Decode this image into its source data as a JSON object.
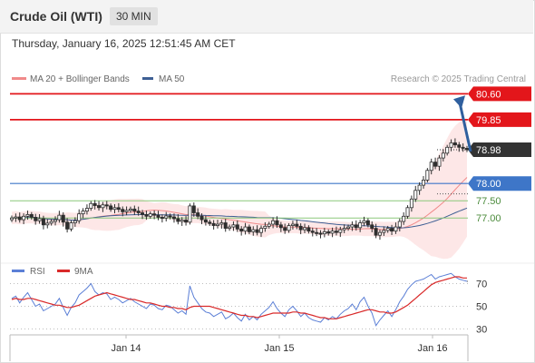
{
  "header": {
    "title": "Crude Oil (WTI)",
    "timeframe": "30 MIN",
    "datetime": "Thursday, January 16, 2025 12:51:45 AM CET"
  },
  "legend": {
    "ma20": "MA 20 + Bollinger Bands",
    "ma50": "MA 50",
    "rsi": "RSI",
    "ma9": "9MA",
    "credit": "Research © 2025 Trading Central"
  },
  "colors": {
    "resistance": "#e3161b",
    "support_main": "#3e76c8",
    "support_secondary": "#8cc87a",
    "current_price": "#333333",
    "candle_up": "#2e2e2e",
    "candle_down": "#2e2e2e",
    "bollinger_fill": "#fde3e3",
    "ma20": "#f08a8a",
    "ma50": "#3e5f94",
    "rsi": "#5b7fd6",
    "rsi_ma": "#d92a2a",
    "arrow": "#2f5f9e"
  },
  "chart_data": [
    {
      "type": "candlestick",
      "x_ticks": [
        "Jan 14",
        "Jan 15",
        "Jan 16"
      ],
      "ylim": [
        75.9,
        80.9
      ],
      "levels": [
        {
          "label": "80.60",
          "value": 80.6,
          "kind": "resistance"
        },
        {
          "label": "79.85",
          "value": 79.85,
          "kind": "resistance"
        },
        {
          "label": "78.98",
          "value": 78.98,
          "kind": "current"
        },
        {
          "label": "78.00",
          "value": 78.0,
          "kind": "support-main"
        },
        {
          "label": "77.50",
          "value": 77.5,
          "kind": "support"
        },
        {
          "label": "77.00",
          "value": 77.0,
          "kind": "support"
        }
      ],
      "close": [
        77.0,
        77.03,
        76.95,
        77.05,
        77.1,
        77.02,
        76.92,
        76.98,
        76.8,
        76.85,
        76.9,
        76.95,
        77.08,
        76.88,
        76.68,
        76.86,
        76.92,
        77.12,
        77.2,
        77.28,
        77.42,
        77.36,
        77.3,
        77.38,
        77.35,
        77.25,
        77.3,
        77.25,
        77.18,
        77.22,
        77.26,
        77.2,
        77.15,
        77.1,
        77.05,
        77.12,
        77.08,
        77.02,
        77.0,
        77.06,
        77.03,
        76.98,
        76.9,
        76.94,
        76.88,
        77.35,
        77.15,
        77.05,
        76.95,
        76.88,
        76.84,
        76.78,
        76.82,
        76.86,
        76.7,
        76.74,
        76.8,
        76.68,
        76.62,
        76.74,
        76.6,
        76.66,
        76.58,
        76.7,
        76.76,
        76.82,
        76.92,
        76.8,
        76.72,
        76.64,
        76.78,
        76.82,
        76.76,
        76.66,
        76.72,
        76.62,
        76.58,
        76.56,
        76.54,
        76.6,
        76.56,
        76.62,
        76.58,
        76.66,
        76.7,
        76.74,
        76.8,
        76.72,
        76.86,
        76.92,
        76.8,
        76.7,
        76.5,
        76.58,
        76.64,
        76.7,
        76.62,
        76.74,
        76.9,
        77.05,
        77.3,
        77.55,
        77.8,
        77.95,
        78.1,
        78.38,
        78.62,
        78.5,
        78.74,
        78.88,
        79.05,
        79.18,
        79.12,
        79.05,
        79.02,
        78.98
      ]
    },
    {
      "type": "line",
      "title": "RSI",
      "y_ticks": [
        70,
        50,
        30
      ],
      "ylim": [
        20,
        80
      ],
      "x_ticks": [
        "Jan 14",
        "Jan 15",
        "Jan 16"
      ],
      "series": [
        {
          "name": "RSI",
          "values": [
            57,
            59,
            53,
            58,
            62,
            56,
            50,
            52,
            46,
            48,
            50,
            52,
            57,
            49,
            42,
            49,
            53,
            60,
            63,
            66,
            70,
            63,
            60,
            62,
            61,
            56,
            58,
            56,
            53,
            55,
            57,
            54,
            52,
            50,
            48,
            52,
            51,
            48,
            47,
            51,
            50,
            47,
            44,
            46,
            43,
            68,
            58,
            53,
            48,
            45,
            44,
            41,
            43,
            45,
            39,
            41,
            44,
            40,
            37,
            43,
            38,
            41,
            38,
            43,
            46,
            49,
            54,
            48,
            44,
            41,
            47,
            50,
            46,
            41,
            44,
            40,
            38,
            37,
            36,
            40,
            38,
            41,
            39,
            43,
            46,
            48,
            52,
            47,
            54,
            58,
            50,
            44,
            33,
            38,
            42,
            46,
            41,
            47,
            54,
            59,
            65,
            69,
            72,
            73,
            74,
            76,
            78,
            74,
            76,
            77,
            78,
            79,
            76,
            74,
            73,
            72
          ]
        },
        {
          "name": "9MA",
          "values": [
            56,
            57,
            56,
            56,
            57,
            57,
            56,
            55,
            54,
            53,
            52,
            51,
            51,
            50,
            49,
            49,
            50,
            51,
            53,
            55,
            57,
            59,
            60,
            61,
            62,
            61,
            60,
            59,
            58,
            57,
            56,
            56,
            55,
            54,
            53,
            53,
            52,
            51,
            50,
            50,
            49,
            49,
            48,
            48,
            47,
            49,
            50,
            50,
            50,
            50,
            50,
            49,
            48,
            47,
            46,
            45,
            44,
            43,
            42,
            42,
            41,
            41,
            40,
            41,
            42,
            43,
            44,
            44,
            44,
            44,
            44,
            45,
            45,
            44,
            44,
            43,
            42,
            41,
            40,
            40,
            39,
            39,
            39,
            40,
            41,
            42,
            43,
            44,
            45,
            46,
            47,
            47,
            46,
            45,
            45,
            44,
            44,
            45,
            47,
            49,
            51,
            54,
            57,
            60,
            63,
            66,
            69,
            71,
            72,
            73,
            74,
            75,
            76,
            76,
            75,
            75
          ]
        }
      ]
    }
  ]
}
